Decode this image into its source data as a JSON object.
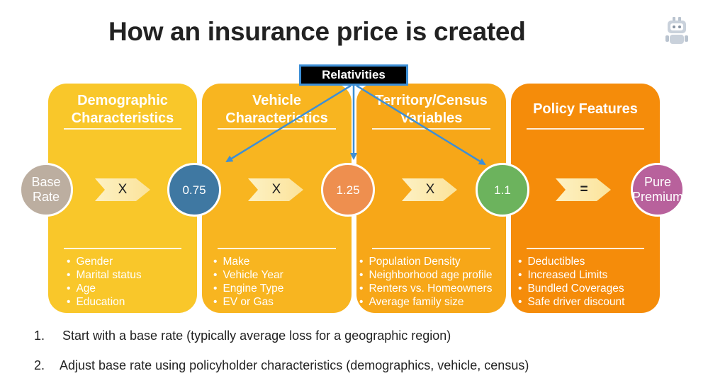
{
  "title": "How an insurance price is created",
  "relativities_label": "Relativities",
  "colors": {
    "panel_demographic": "#f9c72a",
    "panel_vehicle": "#f8b520",
    "panel_territory": "#f7a718",
    "panel_policy": "#f58c0a",
    "base_rate": "#bcaea0",
    "vehicle_circle": "#3f78a2",
    "territory_circle": "#ee8f4f",
    "policy_circle": "#6cb35d",
    "pure_premium": "#b8619c",
    "connector": "#3d8fd6"
  },
  "panels": [
    {
      "heading": "Demographic\nCharacteristics",
      "items": [
        "Gender",
        "Marital status",
        "Age",
        "Education"
      ]
    },
    {
      "heading": "Vehicle\nCharacteristics",
      "items": [
        "Make",
        "Vehicle Year",
        "Engine Type",
        "EV or Gas"
      ]
    },
    {
      "heading": "Territory/Census\nVariables",
      "items": [
        "Population Density",
        "Neighborhood age profile",
        "Renters vs. Homeowners",
        "Average family size"
      ]
    },
    {
      "heading": "Policy Features",
      "items": [
        "Deductibles",
        "Increased Limits",
        "Bundled Coverages",
        "Safe driver discount"
      ]
    }
  ],
  "circles": {
    "base_rate": "Base\nRate",
    "factor_1": "0.75",
    "factor_2": "1.25",
    "factor_3": "1.1",
    "pure_premium": "Pure\nPremium"
  },
  "operators": [
    "X",
    "X",
    "X",
    "="
  ],
  "steps": [
    {
      "number": "1.",
      "text": "Start with a base rate (typically average loss for a geographic region)"
    },
    {
      "number": "2.",
      "text": "Adjust base rate using policyholder characteristics (demographics, vehicle, census)"
    }
  ]
}
